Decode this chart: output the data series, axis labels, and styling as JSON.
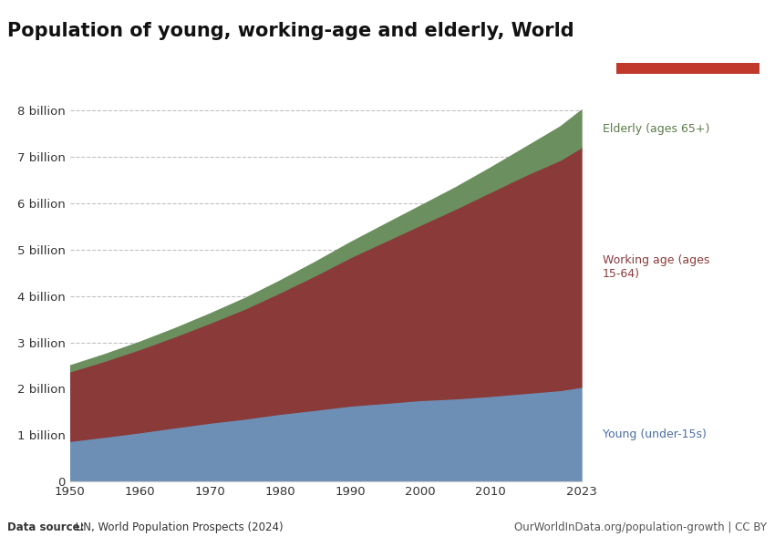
{
  "title": "Population of young, working-age and elderly, World",
  "years": [
    1950,
    1955,
    1960,
    1965,
    1970,
    1975,
    1980,
    1985,
    1990,
    1995,
    2000,
    2005,
    2010,
    2015,
    2020,
    2023
  ],
  "young": [
    0.873,
    0.963,
    1.06,
    1.165,
    1.267,
    1.354,
    1.459,
    1.544,
    1.634,
    1.694,
    1.755,
    1.79,
    1.844,
    1.908,
    1.97,
    2.04
  ],
  "working": [
    1.5,
    1.64,
    1.795,
    1.965,
    2.155,
    2.375,
    2.62,
    2.9,
    3.2,
    3.49,
    3.78,
    4.09,
    4.4,
    4.7,
    4.97,
    5.17
  ],
  "elderly": [
    0.13,
    0.145,
    0.16,
    0.178,
    0.202,
    0.23,
    0.258,
    0.295,
    0.328,
    0.374,
    0.416,
    0.465,
    0.528,
    0.608,
    0.723,
    0.807
  ],
  "young_color": "#6d8fb5",
  "working_color": "#8b3a3a",
  "elderly_color": "#6b8f5e",
  "ylim_max": 8500000000.0,
  "yticks": [
    0,
    1000000000.0,
    2000000000.0,
    3000000000.0,
    4000000000.0,
    5000000000.0,
    6000000000.0,
    7000000000.0,
    8000000000.0
  ],
  "ytick_labels": [
    "0",
    "1 billion",
    "2 billion",
    "3 billion",
    "4 billion",
    "5 billion",
    "6 billion",
    "7 billion",
    "8 billion"
  ],
  "xticks": [
    1950,
    1960,
    1970,
    1980,
    1990,
    2000,
    2010,
    2023
  ],
  "background_color": "#ffffff",
  "logo_bg_color": "#1a2e4a",
  "logo_red_color": "#c0392b",
  "source_bold": "Data source:",
  "source_normal": " UN, World Population Prospects (2024)",
  "source_right_text": "OurWorldInData.org/population-growth | CC BY",
  "label_young": "Young (under-15s)",
  "label_working": "Working age (ages\n15-64)",
  "label_elderly": "Elderly (ages 65+)",
  "label_young_color": "#4a6fa5",
  "label_working_color": "#8b3a3a",
  "label_elderly_color": "#5a7a4a"
}
